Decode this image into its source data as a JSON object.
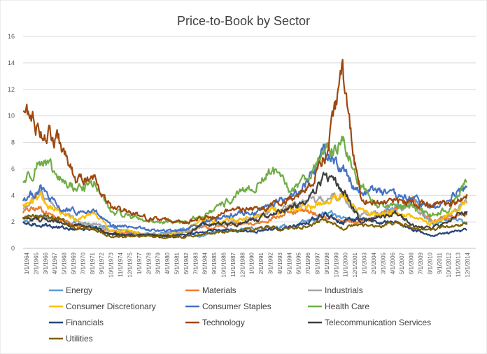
{
  "chart_data": {
    "type": "line",
    "title": "Price-to-Book by Sector",
    "xlabel": "",
    "ylabel": "",
    "ylim": [
      0,
      16
    ],
    "y_ticks": [
      0,
      2,
      4,
      6,
      8,
      10,
      12,
      14,
      16
    ],
    "grid": true,
    "legend_position": "bottom",
    "x_ticks": [
      "1/1/1964",
      "2/1/1965",
      "3/1/1966",
      "4/1/1967",
      "5/1/1968",
      "6/1/1969",
      "7/1/1970",
      "8/1/1971",
      "9/1/1972",
      "10/1/1973",
      "11/1/1974",
      "12/1/1975",
      "1/1/1977",
      "2/1/1978",
      "3/1/1979",
      "4/1/1980",
      "5/1/1981",
      "6/1/1982",
      "7/1/1983",
      "8/1/1984",
      "9/1/1985",
      "10/1/1986",
      "11/1/1987",
      "12/1/1988",
      "1/1/1990",
      "2/1/1991",
      "3/1/1992",
      "4/1/1993",
      "5/1/1994",
      "6/1/1995",
      "7/1/1996",
      "8/1/1997",
      "9/1/1998",
      "10/1/1999",
      "11/1/2000",
      "12/1/2001",
      "1/1/2003",
      "2/1/2004",
      "3/1/2005",
      "4/1/2006",
      "5/1/2007",
      "6/1/2008",
      "7/1/2009",
      "8/1/2010",
      "9/1/2011",
      "10/1/2012",
      "11/1/2013",
      "12/1/2014"
    ],
    "x_years": [
      1964,
      1966,
      1968,
      1970,
      1972,
      1974,
      1976,
      1978,
      1980,
      1982,
      1984,
      1986,
      1988,
      1990,
      1992,
      1994,
      1996,
      1998,
      2000,
      2002,
      2004,
      2006,
      2008,
      2010,
      2012,
      2014
    ],
    "x_range": [
      1964.0,
      2015.0
    ],
    "series": [
      {
        "name": "Energy",
        "color": "#5B9BD5",
        "values": [
          2.0,
          2.4,
          2.2,
          1.9,
          1.7,
          1.6,
          1.2,
          1.0,
          1.1,
          1.5,
          0.9,
          1.3,
          1.4,
          1.5,
          1.7,
          1.6,
          2.0,
          2.6,
          2.3,
          2.2,
          2.5,
          3.0,
          3.6,
          1.8,
          2.2,
          2.0
        ]
      },
      {
        "name": "Materials",
        "color": "#ED7D31",
        "values": [
          2.8,
          3.0,
          2.2,
          1.7,
          1.6,
          1.3,
          1.2,
          1.0,
          1.0,
          1.2,
          1.5,
          1.6,
          1.8,
          1.8,
          2.3,
          2.6,
          2.8,
          2.4,
          2.0,
          2.0,
          2.6,
          2.8,
          3.6,
          2.0,
          2.4,
          2.5
        ]
      },
      {
        "name": "Industrials",
        "color": "#A5A5A5",
        "values": [
          3.0,
          4.2,
          3.0,
          2.0,
          1.8,
          1.3,
          1.1,
          1.0,
          1.1,
          1.2,
          1.7,
          1.8,
          2.0,
          2.2,
          2.8,
          3.0,
          3.5,
          3.6,
          4.0,
          2.5,
          2.7,
          2.9,
          3.2,
          2.0,
          2.5,
          3.4
        ]
      },
      {
        "name": "Consumer Discretionary",
        "color": "#FFC000",
        "values": [
          3.2,
          3.7,
          2.8,
          2.0,
          2.8,
          1.3,
          1.3,
          1.0,
          1.0,
          1.3,
          2.0,
          2.1,
          2.2,
          2.3,
          2.9,
          3.0,
          3.0,
          3.5,
          3.8,
          2.8,
          2.6,
          2.8,
          2.3,
          1.9,
          2.5,
          3.5
        ]
      },
      {
        "name": "Consumer Staples",
        "color": "#4472C4",
        "values": [
          3.7,
          4.5,
          3.0,
          2.7,
          2.8,
          1.6,
          1.7,
          1.4,
          1.3,
          1.4,
          1.9,
          2.3,
          2.6,
          2.7,
          3.4,
          3.8,
          5.0,
          7.5,
          6.0,
          4.2,
          4.5,
          3.8,
          3.8,
          3.0,
          3.6,
          4.7
        ]
      },
      {
        "name": "Health Care",
        "color": "#70AD47",
        "values": [
          5.0,
          6.7,
          5.2,
          4.5,
          4.9,
          2.7,
          2.5,
          2.1,
          2.0,
          1.9,
          2.4,
          3.0,
          4.0,
          4.5,
          6.0,
          4.3,
          5.5,
          7.3,
          8.0,
          4.8,
          3.3,
          3.3,
          3.0,
          2.5,
          3.0,
          5.0
        ]
      },
      {
        "name": "Financials",
        "color": "#264478",
        "values": [
          1.8,
          1.8,
          1.6,
          1.4,
          1.6,
          1.0,
          1.0,
          1.0,
          1.0,
          1.0,
          1.2,
          1.4,
          1.3,
          1.2,
          1.5,
          1.6,
          2.0,
          2.5,
          2.0,
          2.2,
          2.0,
          2.0,
          1.4,
          1.0,
          1.2,
          1.4
        ]
      },
      {
        "name": "Technology",
        "color": "#9E480E",
        "values": [
          10.5,
          9.0,
          8.0,
          5.0,
          5.5,
          3.0,
          2.6,
          2.3,
          2.2,
          2.0,
          2.2,
          2.6,
          3.0,
          2.9,
          3.2,
          3.7,
          4.5,
          7.0,
          13.0,
          3.8,
          3.5,
          3.6,
          3.5,
          3.3,
          3.2,
          4.1
        ]
      },
      {
        "name": "Telecommunication Services",
        "color": "#3F3F3F",
        "values": [
          2.3,
          2.2,
          2.0,
          1.7,
          1.5,
          1.1,
          1.0,
          1.0,
          0.9,
          0.8,
          1.8,
          1.8,
          1.8,
          2.1,
          2.6,
          3.1,
          3.5,
          5.5,
          4.5,
          2.0,
          2.3,
          2.6,
          1.7,
          1.6,
          2.1,
          2.8
        ]
      },
      {
        "name": "Utilities",
        "color": "#7F6000",
        "values": [
          2.3,
          2.6,
          2.2,
          1.5,
          1.5,
          0.8,
          0.9,
          0.9,
          0.8,
          0.9,
          1.0,
          1.2,
          1.3,
          1.5,
          1.6,
          1.5,
          1.7,
          2.1,
          1.5,
          1.8,
          1.6,
          2.0,
          1.5,
          1.4,
          1.6,
          1.8
        ]
      }
    ]
  }
}
